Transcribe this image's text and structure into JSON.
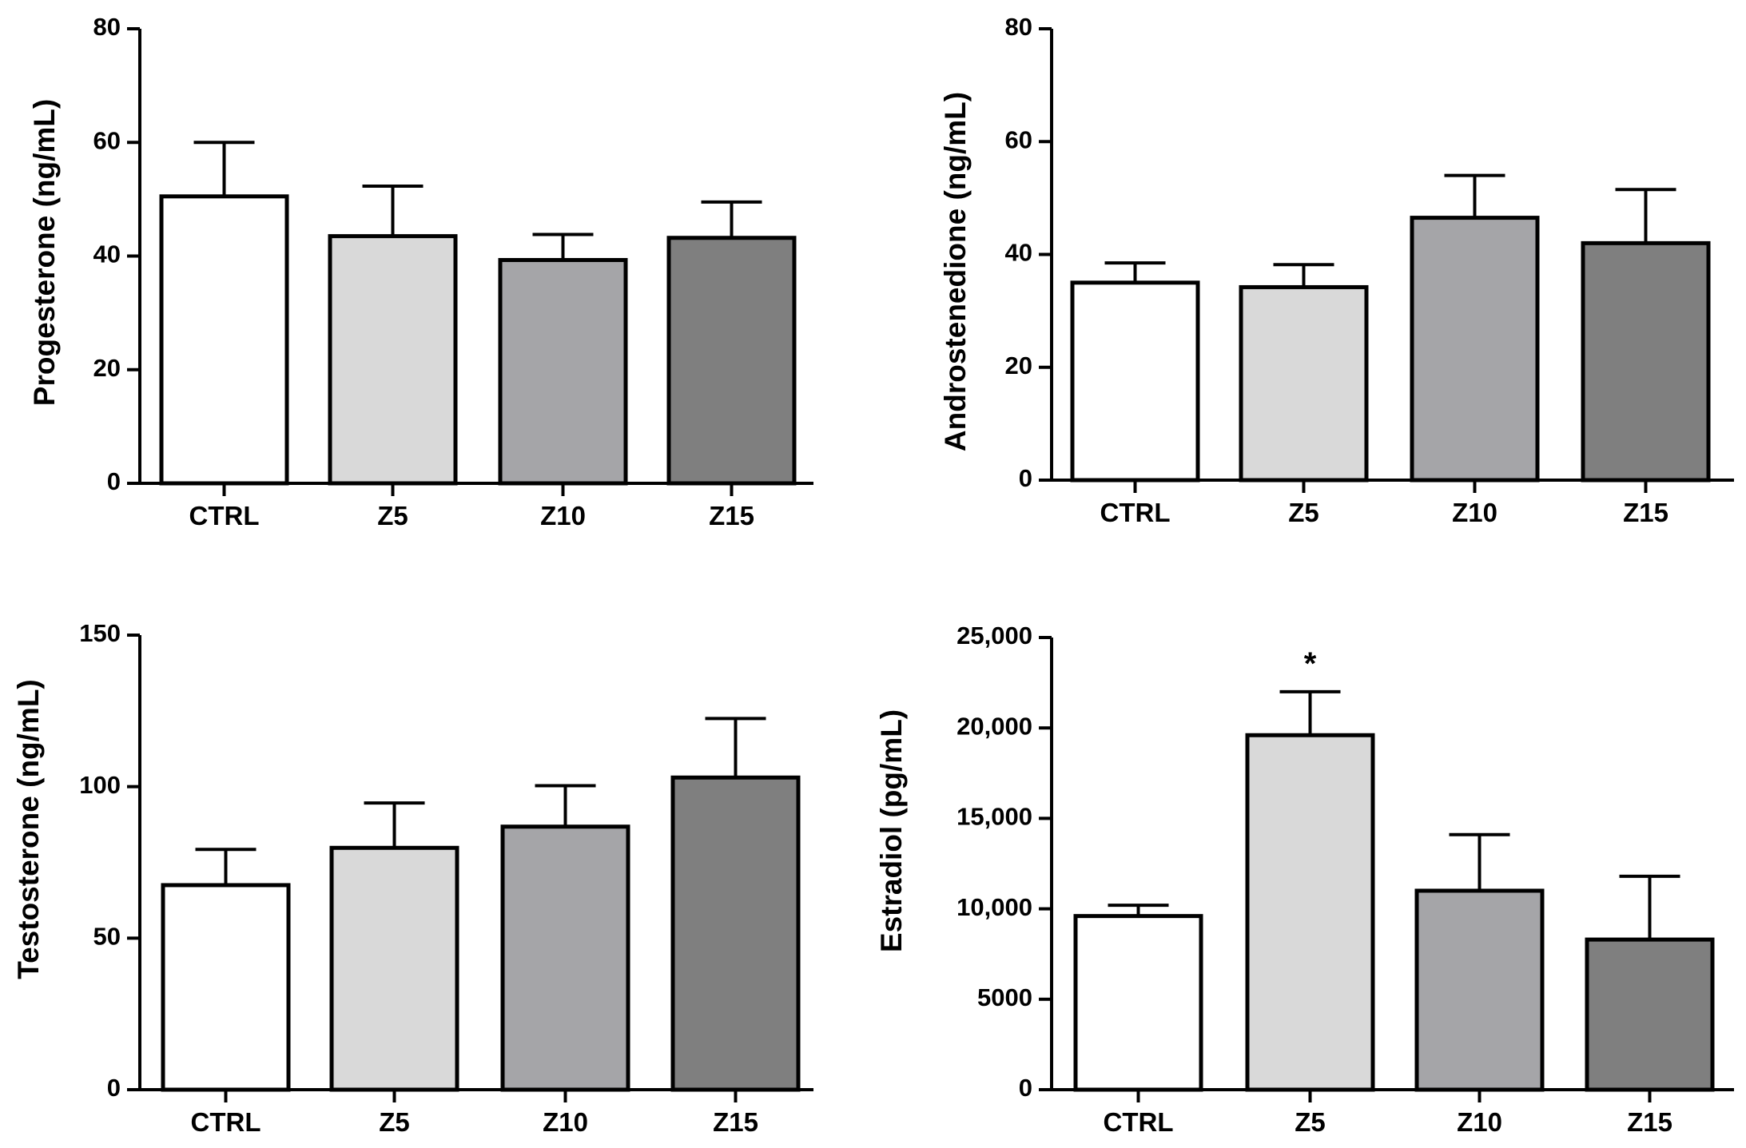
{
  "chart_data": [
    {
      "type": "bar",
      "title": "",
      "xlabel": "",
      "ylabel": "Progesterone (ng/mL)",
      "categories": [
        "CTRL",
        "Z5",
        "Z10",
        "Z15"
      ],
      "values": [
        50.5,
        43.5,
        39.3,
        43.2
      ],
      "errors": [
        9.5,
        8.8,
        4.5,
        6.3
      ],
      "ylim": [
        0,
        80
      ],
      "yticks": [
        0,
        20,
        40,
        60,
        80
      ],
      "ytick_labels": [
        "0",
        "20",
        "40",
        "60",
        "80"
      ],
      "colors": [
        "#ffffff",
        "#d9d9d9",
        "#a5a5a8",
        "#7f7f7f"
      ],
      "annotations": []
    },
    {
      "type": "bar",
      "title": "",
      "xlabel": "",
      "ylabel": "Androstenedione (ng/mL)",
      "categories": [
        "CTRL",
        "Z5",
        "Z10",
        "Z15"
      ],
      "values": [
        35.0,
        34.2,
        46.5,
        42.0
      ],
      "errors": [
        3.5,
        4.0,
        7.5,
        9.5
      ],
      "ylim": [
        0,
        80
      ],
      "yticks": [
        0,
        20,
        40,
        60,
        80
      ],
      "ytick_labels": [
        "0",
        "20",
        "40",
        "60",
        "80"
      ],
      "colors": [
        "#ffffff",
        "#d9d9d9",
        "#a5a5a8",
        "#7f7f7f"
      ],
      "annotations": []
    },
    {
      "type": "bar",
      "title": "",
      "xlabel": "",
      "ylabel": "Testosterone (ng/mL)",
      "categories": [
        "CTRL",
        "Z5",
        "Z10",
        "Z15"
      ],
      "values": [
        67.5,
        79.8,
        86.8,
        103.0
      ],
      "errors": [
        11.8,
        14.8,
        13.5,
        19.5
      ],
      "ylim": [
        0,
        150
      ],
      "yticks": [
        0,
        50,
        100,
        150
      ],
      "ytick_labels": [
        "0",
        "50",
        "100",
        "150"
      ],
      "colors": [
        "#ffffff",
        "#d9d9d9",
        "#a5a5a8",
        "#7f7f7f"
      ],
      "annotations": []
    },
    {
      "type": "bar",
      "title": "",
      "xlabel": "",
      "ylabel": "Estradiol (pg/mL)",
      "categories": [
        "CTRL",
        "Z5",
        "Z10",
        "Z15"
      ],
      "values": [
        9600,
        19600,
        11000,
        8300
      ],
      "errors": [
        600,
        2400,
        3100,
        3500
      ],
      "ylim": [
        0,
        25000
      ],
      "yticks": [
        0,
        5000,
        10000,
        15000,
        20000,
        25000
      ],
      "ytick_labels": [
        "0",
        "5000",
        "10,000",
        "15,000",
        "20,000",
        "25,000"
      ],
      "colors": [
        "#ffffff",
        "#d9d9d9",
        "#a5a5a8",
        "#7f7f7f"
      ],
      "annotations": [
        {
          "category": "Z5",
          "text": "*"
        }
      ]
    }
  ]
}
